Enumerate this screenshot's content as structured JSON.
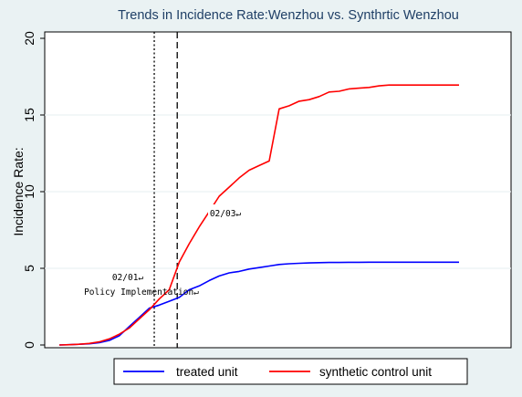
{
  "chart_data": {
    "type": "line",
    "title": "Trends in Incidence Rate:Wenzhou vs. Synthrtic Wenzhou",
    "ylabel": "Incidence Rate:",
    "xlabel": "",
    "ylim": [
      0,
      20
    ],
    "yticks": [
      "0",
      "5",
      "10",
      "15",
      "20"
    ],
    "x": [
      0,
      1,
      2,
      3,
      4,
      5,
      6,
      7,
      8,
      9,
      10,
      11,
      12,
      13,
      14,
      15,
      16,
      17,
      18,
      19,
      20,
      21,
      22,
      23,
      24,
      25,
      26,
      27,
      28,
      29,
      30,
      31,
      32,
      33,
      34,
      35,
      36,
      37,
      38,
      39,
      40
    ],
    "series": [
      {
        "name": "treated unit",
        "color": "#0000ff",
        "values": [
          0.0,
          0.02,
          0.05,
          0.08,
          0.15,
          0.3,
          0.6,
          1.2,
          1.8,
          2.4,
          2.6,
          2.85,
          3.1,
          3.6,
          3.85,
          4.2,
          4.5,
          4.7,
          4.8,
          4.95,
          5.05,
          5.15,
          5.25,
          5.3,
          5.33,
          5.35,
          5.37,
          5.38,
          5.38,
          5.39,
          5.39,
          5.4,
          5.4,
          5.4,
          5.4,
          5.4,
          5.4,
          5.4,
          5.4,
          5.4,
          5.4
        ]
      },
      {
        "name": "synthetic control unit",
        "color": "#ff0000",
        "values": [
          0.0,
          0.02,
          0.05,
          0.1,
          0.2,
          0.4,
          0.7,
          1.1,
          1.7,
          2.3,
          3.0,
          3.6,
          5.4,
          6.6,
          7.7,
          8.7,
          9.7,
          10.3,
          10.9,
          11.4,
          11.7,
          12.0,
          15.4,
          15.6,
          15.9,
          16.0,
          16.2,
          16.5,
          16.55,
          16.7,
          16.75,
          16.8,
          16.9,
          16.95,
          16.95,
          16.95,
          16.95,
          16.95,
          16.95,
          16.95,
          16.95
        ]
      }
    ],
    "vlines": [
      {
        "x": 9.5,
        "style": "dotted",
        "labels": [
          "02/01↵",
          "Policy Implementation↵"
        ]
      },
      {
        "x": 11.8,
        "style": "dashed",
        "labels": [
          "02/03↵"
        ]
      }
    ],
    "grid": true,
    "legend": "bottom"
  }
}
